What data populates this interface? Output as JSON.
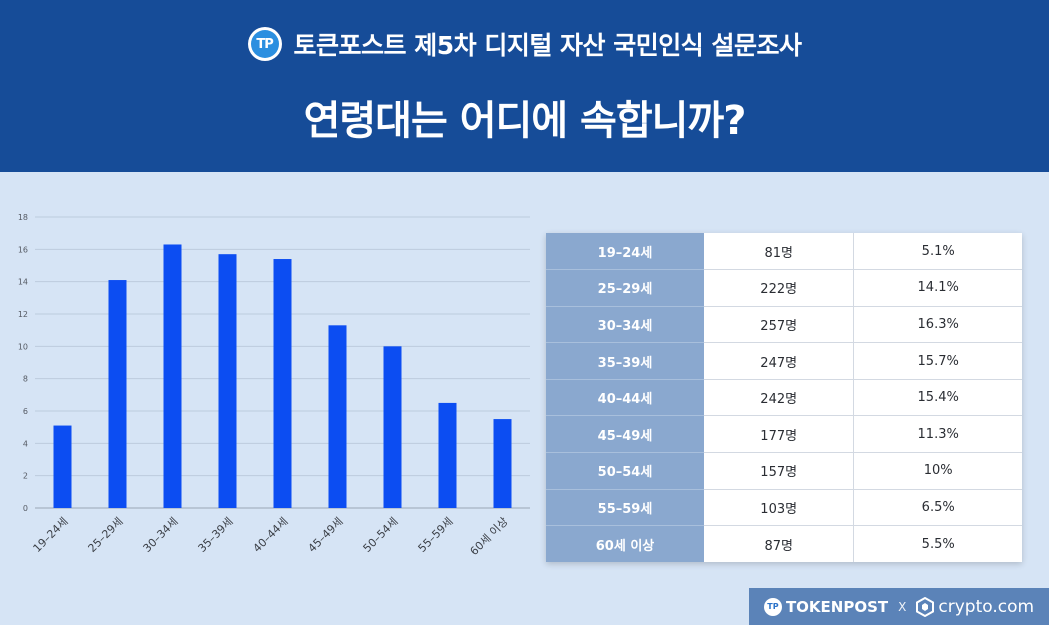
{
  "header": {
    "subtitle": "토큰포스트 제5차 디지털 자산 국민인식 설문조사",
    "title": "연령대는 어디에 속합니까?",
    "logo_text": "TP"
  },
  "chart_data": {
    "type": "bar",
    "categories": [
      "19–24세",
      "25–29세",
      "30–34세",
      "35–39세",
      "40–44세",
      "45–49세",
      "50–54세",
      "55–59세",
      "60세 이상"
    ],
    "values": [
      5.1,
      14.1,
      16.3,
      15.7,
      15.4,
      11.3,
      10,
      6.5,
      5.5
    ],
    "ylim": [
      0,
      18
    ],
    "yticks": [
      0,
      2,
      4,
      6,
      8,
      10,
      12,
      14,
      16,
      18
    ],
    "grid": true,
    "bar_color": "#0c4df2"
  },
  "table": {
    "rows": [
      {
        "age": "19–24세",
        "count": "81명",
        "pct": "5.1%"
      },
      {
        "age": "25–29세",
        "count": "222명",
        "pct": "14.1%"
      },
      {
        "age": "30–34세",
        "count": "257명",
        "pct": "16.3%"
      },
      {
        "age": "35–39세",
        "count": "247명",
        "pct": "15.7%"
      },
      {
        "age": "40–44세",
        "count": "242명",
        "pct": "15.4%"
      },
      {
        "age": "45–49세",
        "count": "177명",
        "pct": "11.3%"
      },
      {
        "age": "50–54세",
        "count": "157명",
        "pct": "10%"
      },
      {
        "age": "55–59세",
        "count": "103명",
        "pct": "6.5%"
      },
      {
        "age": "60세 이상",
        "count": "87명",
        "pct": "5.5%"
      }
    ]
  },
  "footer": {
    "brand1": "TOKENPOST",
    "separator": "X",
    "brand2": "crypto.com",
    "tp_mini": "TP"
  },
  "colors": {
    "header_bg": "#164c98",
    "page_bg": "#d6e4f5",
    "age_cell_bg": "#8aa8cf",
    "footer_bg": "#5b83b8"
  }
}
